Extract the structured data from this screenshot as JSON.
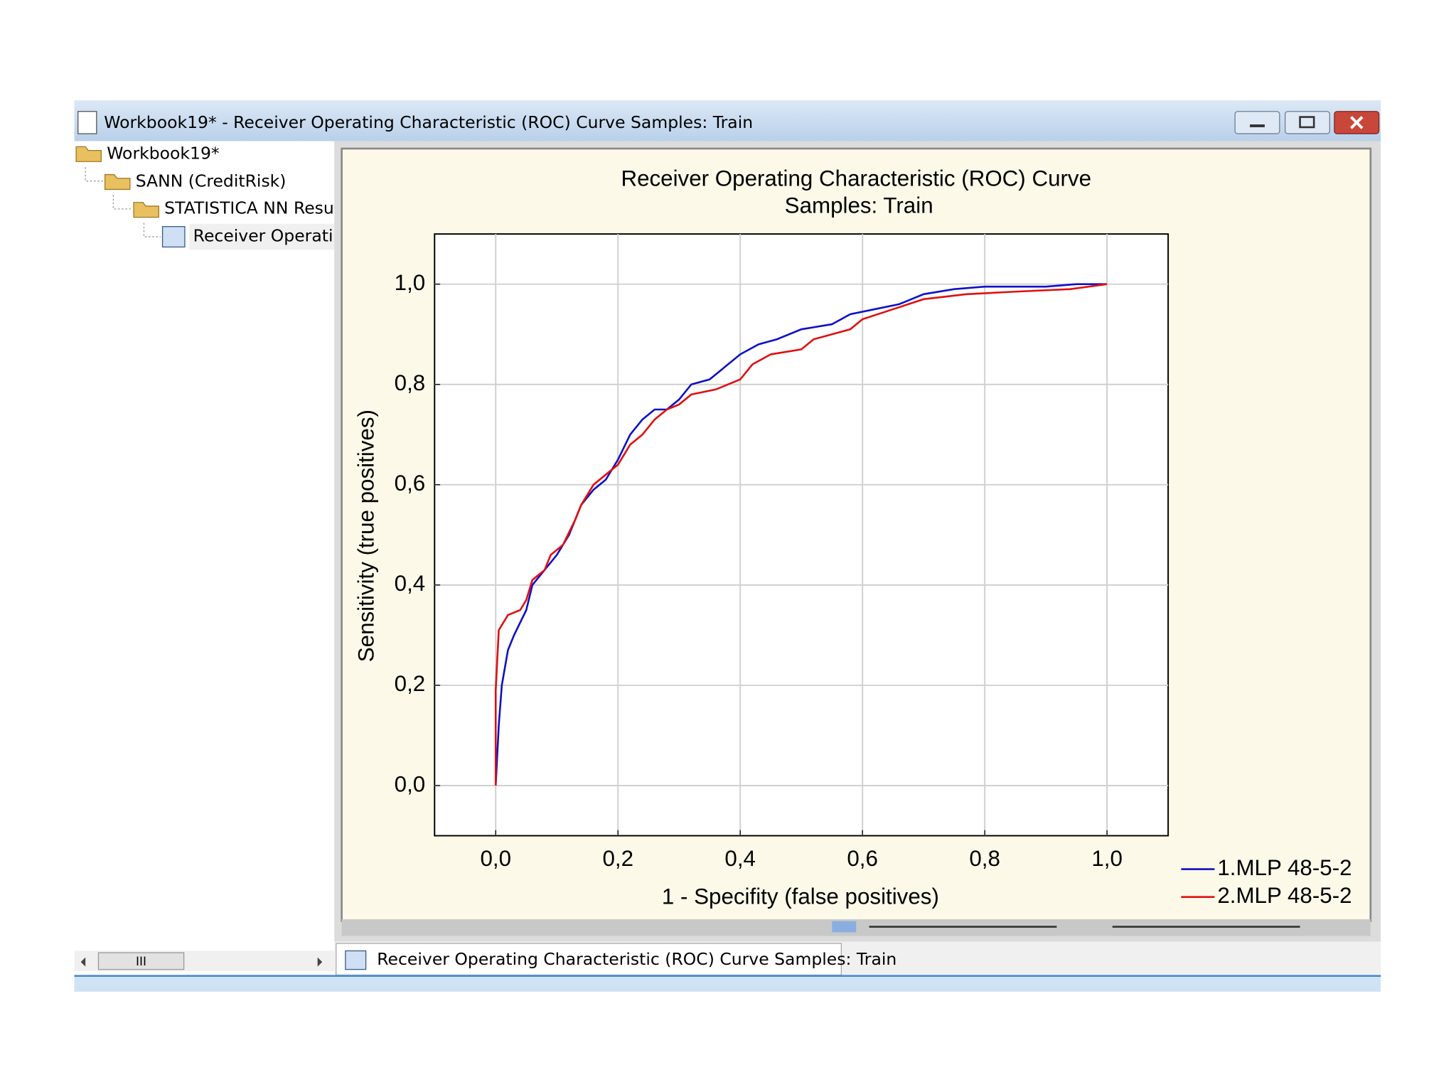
{
  "window": {
    "title": "Workbook19* - Receiver Operating Characteristic (ROC) Curve  Samples: Train"
  },
  "tree": {
    "items": [
      "Workbook19*",
      "SANN (CreditRisk)",
      "STATISTICA NN Resu",
      "Receiver Operatin"
    ]
  },
  "scrollbar": {
    "label": "III"
  },
  "tab": {
    "label": "Receiver Operating Characteristic (ROC) Curve  Samples: Train"
  },
  "chart_data": {
    "type": "line",
    "title": "Receiver Operating Characteristic (ROC) Curve",
    "subtitle": "Samples: Train",
    "xlabel": "1 - Specifity (false positives)",
    "ylabel": "Sensitivity (true positives)",
    "xlim": [
      -0.1,
      1.1
    ],
    "ylim": [
      -0.1,
      1.1
    ],
    "xticks": [
      {
        "value": 0,
        "label": "0,0"
      },
      {
        "value": 0.2,
        "label": "0,2"
      },
      {
        "value": 0.4,
        "label": "0,4"
      },
      {
        "value": 0.6,
        "label": "0,6"
      },
      {
        "value": 0.8,
        "label": "0,8"
      },
      {
        "value": 1,
        "label": "1,0"
      }
    ],
    "yticks": [
      {
        "value": 0,
        "label": "0,0"
      },
      {
        "value": 0.2,
        "label": "0,2"
      },
      {
        "value": 0.4,
        "label": "0,4"
      },
      {
        "value": 0.6,
        "label": "0,6"
      },
      {
        "value": 0.8,
        "label": "0,8"
      },
      {
        "value": 1,
        "label": "1,0"
      }
    ],
    "grid": true,
    "legend": "bottom-right",
    "series": [
      {
        "name": "1.MLP 48-5-2",
        "color": "#1010c8",
        "x": [
          0,
          0.005,
          0.01,
          0.02,
          0.03,
          0.05,
          0.06,
          0.08,
          0.1,
          0.12,
          0.14,
          0.16,
          0.18,
          0.2,
          0.22,
          0.24,
          0.26,
          0.28,
          0.3,
          0.32,
          0.35,
          0.38,
          0.4,
          0.43,
          0.46,
          0.5,
          0.55,
          0.58,
          0.62,
          0.66,
          0.7,
          0.75,
          0.8,
          0.9,
          0.95,
          1.0
        ],
        "values": [
          0,
          0.12,
          0.2,
          0.27,
          0.3,
          0.35,
          0.4,
          0.43,
          0.46,
          0.5,
          0.56,
          0.59,
          0.61,
          0.65,
          0.7,
          0.73,
          0.75,
          0.75,
          0.77,
          0.8,
          0.81,
          0.84,
          0.86,
          0.88,
          0.89,
          0.91,
          0.92,
          0.94,
          0.95,
          0.96,
          0.98,
          0.99,
          0.995,
          0.995,
          1.0,
          1.0
        ]
      },
      {
        "name": "2.MLP 48-5-2",
        "color": "#e01010",
        "x": [
          0,
          0,
          0.005,
          0.01,
          0.02,
          0.04,
          0.05,
          0.06,
          0.08,
          0.09,
          0.11,
          0.13,
          0.14,
          0.16,
          0.18,
          0.2,
          0.22,
          0.24,
          0.26,
          0.28,
          0.3,
          0.32,
          0.36,
          0.4,
          0.42,
          0.45,
          0.5,
          0.52,
          0.55,
          0.58,
          0.6,
          0.65,
          0.7,
          0.77,
          0.85,
          0.94,
          1.0
        ],
        "values": [
          0,
          0.19,
          0.31,
          0.32,
          0.34,
          0.35,
          0.37,
          0.41,
          0.43,
          0.46,
          0.48,
          0.53,
          0.56,
          0.6,
          0.62,
          0.64,
          0.68,
          0.7,
          0.73,
          0.75,
          0.76,
          0.78,
          0.79,
          0.81,
          0.84,
          0.86,
          0.87,
          0.89,
          0.9,
          0.91,
          0.93,
          0.95,
          0.97,
          0.98,
          0.985,
          0.99,
          1.0
        ]
      }
    ]
  }
}
